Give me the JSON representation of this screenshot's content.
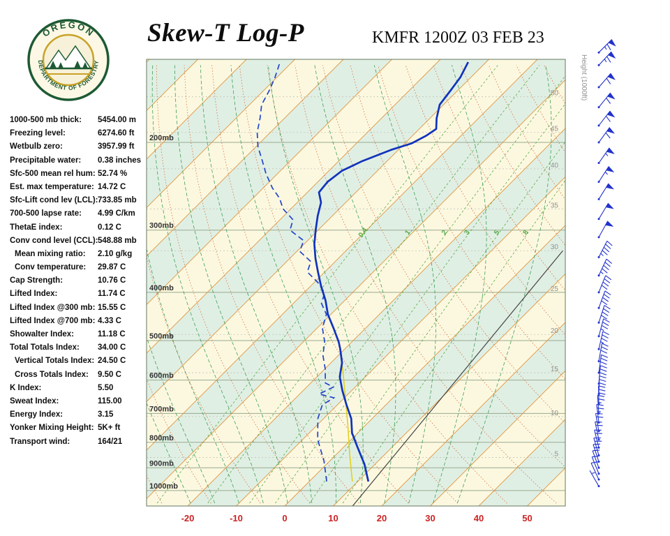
{
  "header": {
    "title": "Skew-T Log-P",
    "station_line": "KMFR 1200Z 03 FEB 23",
    "logo": {
      "top_text": "OREGON",
      "bottom_text": "DEPARTMENT OF FORESTRY"
    }
  },
  "stats": [
    {
      "label": "1000-500 mb thick:",
      "value": "5454.00 m",
      "indent": false
    },
    {
      "label": "Freezing level:",
      "value": "6274.60 ft",
      "indent": false
    },
    {
      "label": "Wetbulb zero:",
      "value": "3957.99 ft",
      "indent": false
    },
    {
      "label": "Precipitable water:",
      "value": "0.38 inches",
      "indent": false
    },
    {
      "label": "Sfc-500 mean rel hum:",
      "value": "52.74 %",
      "indent": false
    },
    {
      "label": "Est. max temperature:",
      "value": "14.72 C",
      "indent": false
    },
    {
      "label": "Sfc-Lift cond lev (LCL):",
      "value": "733.85 mb",
      "indent": false
    },
    {
      "label": "700-500 lapse rate:",
      "value": "4.99 C/km",
      "indent": false
    },
    {
      "label": "ThetaE index:",
      "value": "0.12 C",
      "indent": false
    },
    {
      "label": "Conv cond level (CCL):",
      "value": "548.88 mb",
      "indent": false
    },
    {
      "label": "Mean mixing ratio:",
      "value": "2.10 g/kg",
      "indent": true
    },
    {
      "label": "Conv temperature:",
      "value": "29.87 C",
      "indent": true
    },
    {
      "label": "Cap Strength:",
      "value": "10.76 C",
      "indent": false
    },
    {
      "label": "Lifted Index:",
      "value": "11.74 C",
      "indent": false
    },
    {
      "label": "Lifted Index @300 mb:",
      "value": "15.55 C",
      "indent": false
    },
    {
      "label": "Lifted Index @700 mb:",
      "value": "4.33 C",
      "indent": false
    },
    {
      "label": "Showalter Index:",
      "value": "11.18 C",
      "indent": false
    },
    {
      "label": "Total Totals Index:",
      "value": "34.00 C",
      "indent": false
    },
    {
      "label": "Vertical Totals Index:",
      "value": "24.50 C",
      "indent": true
    },
    {
      "label": "Cross Totals Index:",
      "value": "9.50 C",
      "indent": true
    },
    {
      "label": "K Index:",
      "value": "5.50",
      "indent": false
    },
    {
      "label": "Sweat Index:",
      "value": "115.00",
      "indent": false
    },
    {
      "label": "Energy Index:",
      "value": "3.15",
      "indent": false
    },
    {
      "label": "Yonker Mixing Height:",
      "value": "5K+ ft",
      "indent": false
    },
    {
      "label": "Transport wind:",
      "value": "164/21",
      "indent": false
    }
  ],
  "chart_data": {
    "type": "skewt",
    "title": "Skew-T Log-P",
    "station": "KMFR 1200Z 03 FEB 23",
    "pressure_ticks": [
      200,
      300,
      400,
      500,
      600,
      700,
      800,
      900,
      1000
    ],
    "pressure_unit": "mb",
    "temp_ticks": [
      -20,
      -10,
      0,
      10,
      20,
      30,
      40,
      50
    ],
    "height_axis_label": "Height (1000ft)",
    "height_ticks": [
      {
        "label": 50,
        "p": 162
      },
      {
        "label": 45,
        "p": 191
      },
      {
        "label": 40,
        "p": 226
      },
      {
        "label": 35,
        "p": 272
      },
      {
        "label": 30,
        "p": 330
      },
      {
        "label": 25,
        "p": 400
      },
      {
        "label": 20,
        "p": 486
      },
      {
        "label": 15,
        "p": 580
      },
      {
        "label": 10,
        "p": 710
      },
      {
        "label": 5,
        "p": 858
      }
    ],
    "mixing_ratio_labels": [
      0.4,
      1,
      2,
      3,
      5,
      8
    ],
    "temperature_profile": [
      [
        959,
        12.2
      ],
      [
        885,
        7.8
      ],
      [
        816,
        2.7
      ],
      [
        766,
        -1.2
      ],
      [
        717,
        -4.3
      ],
      [
        673,
        -8.1
      ],
      [
        630,
        -11.9
      ],
      [
        591,
        -15.3
      ],
      [
        554,
        -17.7
      ],
      [
        520,
        -20.9
      ],
      [
        503,
        -22.7
      ],
      [
        472,
        -26.6
      ],
      [
        443,
        -30.6
      ],
      [
        415,
        -34.0
      ],
      [
        389,
        -37.8
      ],
      [
        364,
        -41.4
      ],
      [
        342,
        -44.7
      ],
      [
        320,
        -47.9
      ],
      [
        300,
        -50.5
      ],
      [
        281,
        -53.0
      ],
      [
        264,
        -55.1
      ],
      [
        252,
        -57.6
      ],
      [
        240,
        -58.0
      ],
      [
        228,
        -57.3
      ],
      [
        218,
        -55.1
      ],
      [
        207,
        -51.5
      ],
      [
        201,
        -48.6
      ],
      [
        194,
        -47.2
      ],
      [
        188,
        -46.5
      ],
      [
        179,
        -48.6
      ],
      [
        168,
        -50.8
      ],
      [
        157,
        -51.5
      ],
      [
        148,
        -52.2
      ],
      [
        138,
        -53.7
      ]
    ],
    "dewpoint_profile": [
      [
        959,
        3.6
      ],
      [
        872,
        -1.2
      ],
      [
        790,
        -6.9
      ],
      [
        717,
        -11.2
      ],
      [
        673,
        -13.1
      ],
      [
        651,
        -12.2
      ],
      [
        640,
        -16.0
      ],
      [
        620,
        -14.5
      ],
      [
        608,
        -17.0
      ],
      [
        570,
        -19.9
      ],
      [
        535,
        -23.2
      ],
      [
        503,
        -25.6
      ],
      [
        472,
        -28.9
      ],
      [
        443,
        -30.9
      ],
      [
        421,
        -34.2
      ],
      [
        401,
        -35.7
      ],
      [
        382,
        -39.3
      ],
      [
        364,
        -43.6
      ],
      [
        347,
        -45.0
      ],
      [
        331,
        -49.4
      ],
      [
        315,
        -50.8
      ],
      [
        300,
        -55.8
      ],
      [
        286,
        -57.3
      ],
      [
        272,
        -61.6
      ],
      [
        259,
        -64.5
      ],
      [
        247,
        -68.1
      ],
      [
        231,
        -72.4
      ],
      [
        217,
        -76.0
      ],
      [
        204,
        -79.6
      ],
      [
        191,
        -82.7
      ],
      [
        179,
        -85.0
      ],
      [
        168,
        -87.5
      ],
      [
        157,
        -88.9
      ],
      [
        148,
        -90.4
      ],
      [
        138,
        -92.5
      ]
    ],
    "wetbulb_profile": [
      [
        959,
        8.9
      ],
      [
        845,
        2.7
      ],
      [
        740,
        -3.6
      ],
      [
        651,
        -9.8
      ],
      [
        570,
        -16.3
      ],
      [
        520,
        -21.0
      ]
    ],
    "reference_line": [
      [
        1074,
        14.0
      ],
      [
        330,
        4.7
      ]
    ],
    "wind_barbs": [
      {
        "p": 980,
        "dir": 150,
        "spd": 5
      },
      {
        "p": 950,
        "dir": 155,
        "spd": 8
      },
      {
        "p": 925,
        "dir": 158,
        "spd": 10
      },
      {
        "p": 900,
        "dir": 160,
        "spd": 12
      },
      {
        "p": 875,
        "dir": 162,
        "spd": 15
      },
      {
        "p": 850,
        "dir": 164,
        "spd": 18
      },
      {
        "p": 820,
        "dir": 166,
        "spd": 20
      },
      {
        "p": 790,
        "dir": 168,
        "spd": 20
      },
      {
        "p": 760,
        "dir": 170,
        "spd": 22
      },
      {
        "p": 730,
        "dir": 173,
        "spd": 25
      },
      {
        "p": 700,
        "dir": 176,
        "spd": 25
      },
      {
        "p": 670,
        "dir": 179,
        "spd": 28
      },
      {
        "p": 640,
        "dir": 182,
        "spd": 28
      },
      {
        "p": 610,
        "dir": 185,
        "spd": 30
      },
      {
        "p": 580,
        "dir": 188,
        "spd": 30
      },
      {
        "p": 550,
        "dir": 190,
        "spd": 32
      },
      {
        "p": 520,
        "dir": 193,
        "spd": 35
      },
      {
        "p": 490,
        "dir": 195,
        "spd": 35
      },
      {
        "p": 460,
        "dir": 198,
        "spd": 38
      },
      {
        "p": 430,
        "dir": 200,
        "spd": 40
      },
      {
        "p": 400,
        "dir": 202,
        "spd": 42
      },
      {
        "p": 370,
        "dir": 205,
        "spd": 45
      },
      {
        "p": 340,
        "dir": 207,
        "spd": 45
      },
      {
        "p": 310,
        "dir": 209,
        "spd": 48
      },
      {
        "p": 285,
        "dir": 211,
        "spd": 50
      },
      {
        "p": 260,
        "dir": 212,
        "spd": 52
      },
      {
        "p": 240,
        "dir": 213,
        "spd": 55
      },
      {
        "p": 220,
        "dir": 215,
        "spd": 55
      },
      {
        "p": 200,
        "dir": 216,
        "spd": 58
      },
      {
        "p": 185,
        "dir": 218,
        "spd": 60
      },
      {
        "p": 170,
        "dir": 219,
        "spd": 60
      },
      {
        "p": 155,
        "dir": 221,
        "spd": 62
      },
      {
        "p": 140,
        "dir": 223,
        "spd": 65
      },
      {
        "p": 132,
        "dir": 225,
        "spd": 65
      }
    ],
    "colors": {
      "temperature_line": "#1133bb",
      "dewpoint_line": "#2244cc",
      "wetbulb_line": "#e0d020",
      "isotherm": "#e0953f",
      "dry_adiabat": "#d4713f",
      "moist_adiabat": "#3fa05a",
      "mixing_ratio": "#55aa44",
      "band_fill": "#e0efe4",
      "chart_bg": "#fcf8e0",
      "pressure_line": "#98aa8e",
      "height_text": "#909090",
      "pressure_text": "#333333",
      "temp_tick_text": "#cc2222",
      "wind_barb": "#2233cc",
      "reference_line": "#444444",
      "border": "#66775f"
    }
  }
}
